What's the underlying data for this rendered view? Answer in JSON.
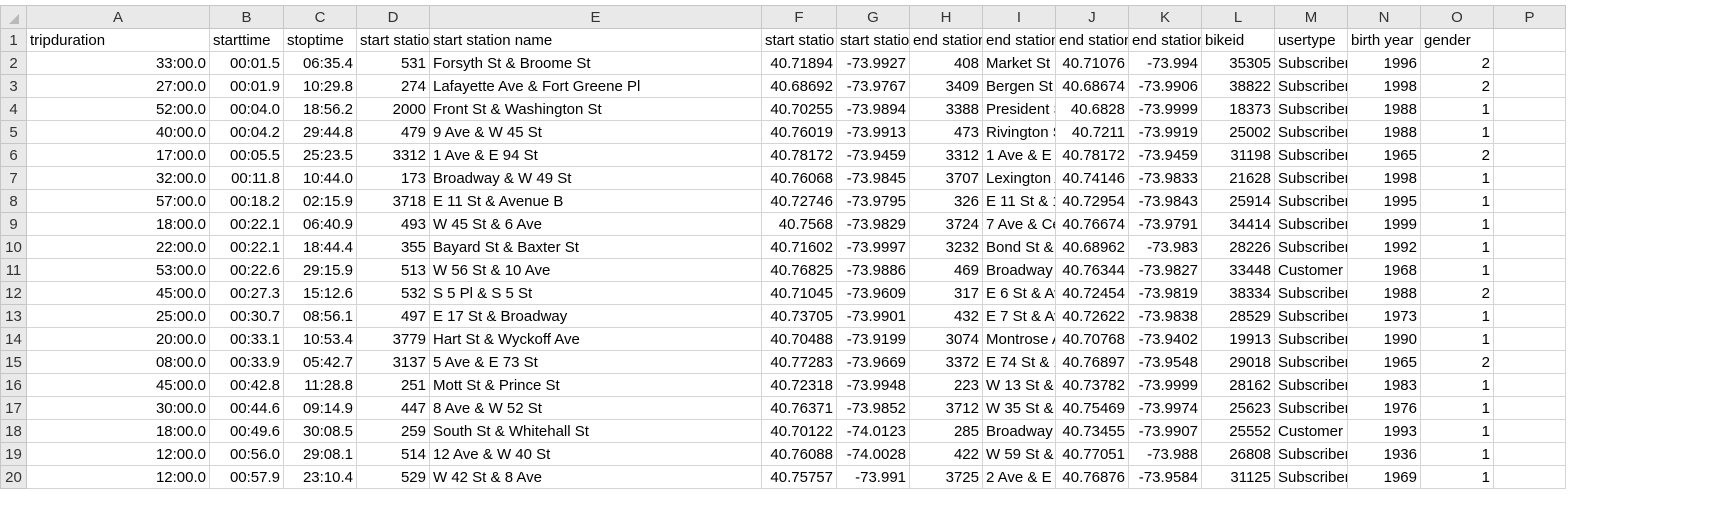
{
  "column_letters": [
    "A",
    "B",
    "C",
    "D",
    "E",
    "F",
    "G",
    "H",
    "I",
    "J",
    "K",
    "L",
    "M",
    "N",
    "O",
    "P"
  ],
  "header_row": {
    "row_number": "1",
    "cells": [
      "tripduration",
      "starttime",
      "stoptime",
      "start statio",
      "start station name",
      "start statio",
      "start statio",
      "end station",
      "end station",
      "end station",
      "end station",
      "bikeid",
      "usertype",
      "birth year",
      "gender",
      ""
    ]
  },
  "rows": [
    {
      "n": "2",
      "cells": [
        "33:00.0",
        "00:01.5",
        "06:35.4",
        "531",
        "Forsyth St & Broome St",
        "40.71894",
        "-73.9927",
        "408",
        "Market St",
        "40.71076",
        "-73.994",
        "35305",
        "Subscriber",
        "1996",
        "2",
        ""
      ]
    },
    {
      "n": "3",
      "cells": [
        "27:00.0",
        "00:01.9",
        "10:29.8",
        "274",
        "Lafayette Ave & Fort Greene Pl",
        "40.68692",
        "-73.9767",
        "3409",
        "Bergen St &",
        "40.68674",
        "-73.9906",
        "38822",
        "Subscriber",
        "1998",
        "2",
        ""
      ]
    },
    {
      "n": "4",
      "cells": [
        "52:00.0",
        "00:04.0",
        "18:56.2",
        "2000",
        "Front St & Washington St",
        "40.70255",
        "-73.9894",
        "3388",
        "President S",
        "40.6828",
        "-73.9999",
        "18373",
        "Subscriber",
        "1988",
        "1",
        ""
      ]
    },
    {
      "n": "5",
      "cells": [
        "40:00.0",
        "00:04.2",
        "29:44.8",
        "479",
        "9 Ave & W 45 St",
        "40.76019",
        "-73.9913",
        "473",
        "Rivington S",
        "40.7211",
        "-73.9919",
        "25002",
        "Subscriber",
        "1988",
        "1",
        ""
      ]
    },
    {
      "n": "6",
      "cells": [
        "17:00.0",
        "00:05.5",
        "25:23.5",
        "3312",
        "1 Ave & E 94 St",
        "40.78172",
        "-73.9459",
        "3312",
        "1 Ave & E 9",
        "40.78172",
        "-73.9459",
        "31198",
        "Subscriber",
        "1965",
        "2",
        ""
      ]
    },
    {
      "n": "7",
      "cells": [
        "32:00.0",
        "00:11.8",
        "10:44.0",
        "173",
        "Broadway & W 49 St",
        "40.76068",
        "-73.9845",
        "3707",
        "Lexington A",
        "40.74146",
        "-73.9833",
        "21628",
        "Subscriber",
        "1998",
        "1",
        ""
      ]
    },
    {
      "n": "8",
      "cells": [
        "57:00.0",
        "00:18.2",
        "02:15.9",
        "3718",
        "E 11 St & Avenue B",
        "40.72746",
        "-73.9795",
        "326",
        "E 11 St & 1",
        "40.72954",
        "-73.9843",
        "25914",
        "Subscriber",
        "1995",
        "1",
        ""
      ]
    },
    {
      "n": "9",
      "cells": [
        "18:00.0",
        "00:22.1",
        "06:40.9",
        "493",
        "W 45 St & 6 Ave",
        "40.7568",
        "-73.9829",
        "3724",
        "7 Ave & Ce",
        "40.76674",
        "-73.9791",
        "34414",
        "Subscriber",
        "1999",
        "1",
        ""
      ]
    },
    {
      "n": "10",
      "cells": [
        "22:00.0",
        "00:22.1",
        "18:44.4",
        "355",
        "Bayard St & Baxter St",
        "40.71602",
        "-73.9997",
        "3232",
        "Bond St &",
        "40.68962",
        "-73.983",
        "28226",
        "Subscriber",
        "1992",
        "1",
        ""
      ]
    },
    {
      "n": "11",
      "cells": [
        "53:00.0",
        "00:22.6",
        "29:15.9",
        "513",
        "W 56 St & 10 Ave",
        "40.76825",
        "-73.9886",
        "469",
        "Broadway",
        "40.76344",
        "-73.9827",
        "33448",
        "Customer",
        "1968",
        "1",
        ""
      ]
    },
    {
      "n": "12",
      "cells": [
        "45:00.0",
        "00:27.3",
        "15:12.6",
        "532",
        "S 5 Pl & S 5 St",
        "40.71045",
        "-73.9609",
        "317",
        "E 6 St & Av",
        "40.72454",
        "-73.9819",
        "38334",
        "Subscriber",
        "1988",
        "2",
        ""
      ]
    },
    {
      "n": "13",
      "cells": [
        "25:00.0",
        "00:30.7",
        "08:56.1",
        "497",
        "E 17 St & Broadway",
        "40.73705",
        "-73.9901",
        "432",
        "E 7 St & Av",
        "40.72622",
        "-73.9838",
        "28529",
        "Subscriber",
        "1973",
        "1",
        ""
      ]
    },
    {
      "n": "14",
      "cells": [
        "20:00.0",
        "00:33.1",
        "10:53.4",
        "3779",
        "Hart St & Wyckoff Ave",
        "40.70488",
        "-73.9199",
        "3074",
        "Montrose A",
        "40.70768",
        "-73.9402",
        "19913",
        "Subscriber",
        "1990",
        "1",
        ""
      ]
    },
    {
      "n": "15",
      "cells": [
        "08:00.0",
        "00:33.9",
        "05:42.7",
        "3137",
        "5 Ave & E 73 St",
        "40.77283",
        "-73.9669",
        "3372",
        "E 74 St & 1",
        "40.76897",
        "-73.9548",
        "29018",
        "Subscriber",
        "1965",
        "2",
        ""
      ]
    },
    {
      "n": "16",
      "cells": [
        "45:00.0",
        "00:42.8",
        "11:28.8",
        "251",
        "Mott St & Prince St",
        "40.72318",
        "-73.9948",
        "223",
        "W 13 St &",
        "40.73782",
        "-73.9999",
        "28162",
        "Subscriber",
        "1983",
        "1",
        ""
      ]
    },
    {
      "n": "17",
      "cells": [
        "30:00.0",
        "00:44.6",
        "09:14.9",
        "447",
        "8 Ave & W 52 St",
        "40.76371",
        "-73.9852",
        "3712",
        "W 35 St &",
        "40.75469",
        "-73.9974",
        "25623",
        "Subscriber",
        "1976",
        "1",
        ""
      ]
    },
    {
      "n": "18",
      "cells": [
        "18:00.0",
        "00:49.6",
        "30:08.5",
        "259",
        "South St & Whitehall St",
        "40.70122",
        "-74.0123",
        "285",
        "Broadway",
        "40.73455",
        "-73.9907",
        "25552",
        "Customer",
        "1993",
        "1",
        ""
      ]
    },
    {
      "n": "19",
      "cells": [
        "12:00.0",
        "00:56.0",
        "29:08.1",
        "514",
        "12 Ave & W 40 St",
        "40.76088",
        "-74.0028",
        "422",
        "W 59 St &",
        "40.77051",
        "-73.988",
        "26808",
        "Subscriber",
        "1936",
        "1",
        ""
      ]
    },
    {
      "n": "20",
      "cells": [
        "12:00.0",
        "00:57.9",
        "23:10.4",
        "529",
        "W 42 St & 8 Ave",
        "40.75757",
        "-73.991",
        "3725",
        "2 Ave & E 1",
        "40.76876",
        "-73.9584",
        "31125",
        "Subscriber",
        "1969",
        "1",
        ""
      ]
    }
  ],
  "colors": {
    "header_bg": "#e9e9e9",
    "gridline": "#d4d4d4"
  }
}
